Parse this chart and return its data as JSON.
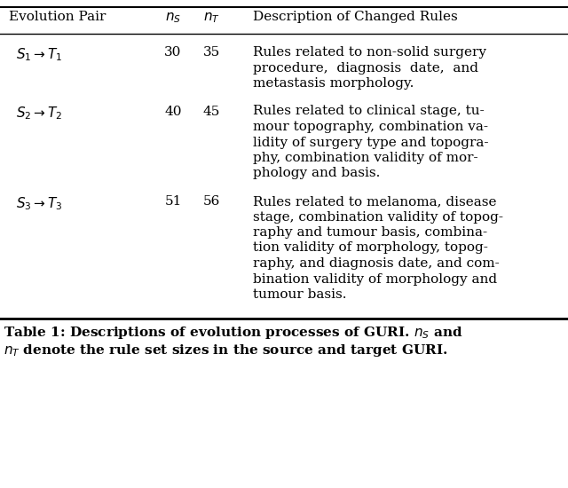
{
  "headers": [
    "Evolution Pair",
    "$n_S$",
    "$n_T$",
    "Description of Changed Rules"
  ],
  "rows": [
    {
      "pair": "$S_1 \\rightarrow T_1$",
      "ns": "30",
      "nt": "35",
      "desc_lines": [
        "Rules related to non-solid surgery",
        "procedure,  diagnosis  date,  and",
        "metastasis morphology."
      ]
    },
    {
      "pair": "$S_2 \\rightarrow T_2$",
      "ns": "40",
      "nt": "45",
      "desc_lines": [
        "Rules related to clinical stage, tu-",
        "mour topography, combination va-",
        "lidity of surgery type and topogra-",
        "phy, combination validity of mor-",
        "phology and basis."
      ]
    },
    {
      "pair": "$S_3 \\rightarrow T_3$",
      "ns": "51",
      "nt": "56",
      "desc_lines": [
        "Rules related to melanoma, disease",
        "stage, combination validity of topog-",
        "raphy and tumour basis, combina-",
        "tion validity of morphology, topog-",
        "raphy, and diagnosis date, and com-",
        "bination validity of morphology and",
        "tumour basis."
      ]
    }
  ],
  "caption_line1": "Table 1: Descriptions of evolution processes of GURI. $n_S$ and",
  "caption_line2": "$n_T$ denote the rule set sizes in the source and target GURI.",
  "bg_color": "#ffffff",
  "text_color": "#000000",
  "font_size": 11.0,
  "caption_font_size": 11.0
}
